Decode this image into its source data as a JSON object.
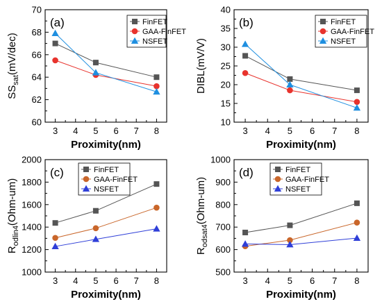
{
  "chart_data": [
    {
      "type": "line",
      "panel_label": "(a)",
      "xlabel": "Proximity(nm)",
      "ylabel": "SS",
      "ylabel_sub": "sat",
      "ylabel_unit": "(mV/dec)",
      "xlim": [
        2.5,
        8.5
      ],
      "ylim": [
        60,
        70
      ],
      "xticks": [
        "3",
        "4",
        "5",
        "6",
        "7",
        "8"
      ],
      "yticks": [
        "60",
        "62",
        "64",
        "66",
        "68",
        "70"
      ],
      "x": [
        3,
        5,
        8
      ],
      "legend_position": "top-right",
      "series": [
        {
          "name": "FinFET",
          "values": [
            67.0,
            65.3,
            64.0
          ],
          "color": "#555555",
          "marker": "square"
        },
        {
          "name": "GAA-FinFET",
          "values": [
            65.5,
            64.2,
            63.2
          ],
          "color": "#e8332d",
          "marker": "circle"
        },
        {
          "name": "NSFET",
          "values": [
            67.9,
            64.4,
            62.7
          ],
          "color": "#1f8fe0",
          "marker": "triangle"
        }
      ]
    },
    {
      "type": "line",
      "panel_label": "(b)",
      "xlabel": "Proximity(nm)",
      "ylabel": "DIBL(mV/V)",
      "ylabel_sub": "",
      "ylabel_unit": "",
      "xlim": [
        2.5,
        8.5
      ],
      "ylim": [
        10,
        40
      ],
      "xticks": [
        "3",
        "4",
        "5",
        "6",
        "7",
        "8"
      ],
      "yticks": [
        "10",
        "15",
        "20",
        "25",
        "30",
        "35",
        "40"
      ],
      "x": [
        3,
        5,
        8
      ],
      "legend_position": "top-right",
      "series": [
        {
          "name": "FinFET",
          "values": [
            27.7,
            21.5,
            18.5
          ],
          "color": "#555555",
          "marker": "square"
        },
        {
          "name": "GAA-FinFET",
          "values": [
            23.1,
            18.5,
            15.4
          ],
          "color": "#e8332d",
          "marker": "circle"
        },
        {
          "name": "NSFET",
          "values": [
            30.8,
            20.0,
            13.8
          ],
          "color": "#1f8fe0",
          "marker": "triangle"
        }
      ]
    },
    {
      "type": "line",
      "panel_label": "(c)",
      "xlabel": "Proximity(nm)",
      "ylabel": "R",
      "ylabel_sub": "odlin4",
      "ylabel_unit": "(Ohm-um)",
      "xlim": [
        2.5,
        8.5
      ],
      "ylim": [
        1000,
        2000
      ],
      "xticks": [
        "3",
        "4",
        "5",
        "6",
        "7",
        "8"
      ],
      "yticks": [
        "1000",
        "1200",
        "1400",
        "1600",
        "1800",
        "2000"
      ],
      "x": [
        3,
        5,
        8
      ],
      "legend_position": "top-left",
      "series": [
        {
          "name": "FinFET",
          "values": [
            1437,
            1545,
            1783
          ],
          "color": "#555555",
          "marker": "square"
        },
        {
          "name": "GAA-FinFET",
          "values": [
            1304,
            1390,
            1573
          ],
          "color": "#c9662a",
          "marker": "circle"
        },
        {
          "name": "NSFET",
          "values": [
            1228,
            1292,
            1385
          ],
          "color": "#2f3fd8",
          "marker": "triangle"
        }
      ]
    },
    {
      "type": "line",
      "panel_label": "(d)",
      "xlabel": "Proximity(nm)",
      "ylabel": "R",
      "ylabel_sub": "odsat4",
      "ylabel_unit": "(Ohm-um)",
      "xlim": [
        2.5,
        8.5
      ],
      "ylim": [
        500,
        1000
      ],
      "xticks": [
        "3",
        "4",
        "5",
        "6",
        "7",
        "8"
      ],
      "yticks": [
        "500",
        "600",
        "700",
        "800",
        "900",
        "1000"
      ],
      "x": [
        3,
        5,
        8
      ],
      "legend_position": "top-left",
      "series": [
        {
          "name": "FinFET",
          "values": [
            676,
            708,
            806
          ],
          "color": "#555555",
          "marker": "square"
        },
        {
          "name": "GAA-FinFET",
          "values": [
            615,
            642,
            720
          ],
          "color": "#c9662a",
          "marker": "circle"
        },
        {
          "name": "NSFET",
          "values": [
            625,
            622,
            651
          ],
          "color": "#2f3fd8",
          "marker": "triangle"
        }
      ]
    }
  ]
}
